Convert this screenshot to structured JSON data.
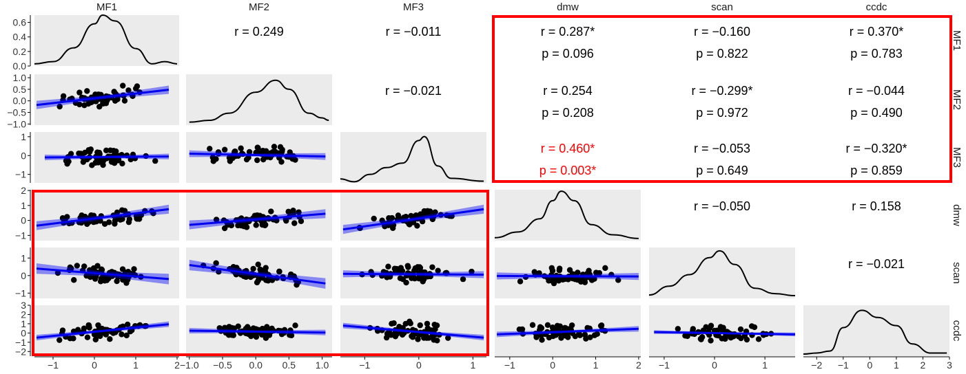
{
  "chart_data": {
    "type": "scatter",
    "subtype": "scatterplot-matrix",
    "variables": [
      "MF1",
      "MF2",
      "MF3",
      "dmw",
      "scan",
      "ccdc"
    ],
    "axis_ranges": {
      "MF1": [
        -1.45,
        2.05
      ],
      "MF2": [
        -1.05,
        1.15
      ],
      "MF3": [
        -1.45,
        1.25
      ],
      "dmw": [
        -1.35,
        2.05
      ],
      "scan": [
        -1.3,
        1.6
      ],
      "ccdc": [
        -2.5,
        3.0
      ]
    },
    "bottom_ticks": {
      "MF1": [
        "−1",
        "0",
        "1",
        "2"
      ],
      "MF2": [
        "−1.0",
        "−0.5",
        "0.0",
        "0.5",
        "1.0"
      ],
      "MF3": [
        "−1",
        "0",
        "1"
      ],
      "dmw": [
        "−1",
        "0",
        "1",
        "2"
      ],
      "scan": [
        "−1",
        "0",
        "1"
      ],
      "ccdc": [
        "−2",
        "−1",
        "0",
        "1",
        "2",
        "3"
      ]
    },
    "left_ticks": {
      "MF1": [
        "0.6",
        "0.4",
        "0.2",
        "0.0"
      ],
      "MF2": [
        "1.0",
        "0.5",
        "0.0",
        "−0.5",
        "−1.0"
      ],
      "MF3": [
        "1",
        "0",
        "−1"
      ],
      "dmw": [
        "2",
        "1",
        "0",
        "−1"
      ],
      "scan": [
        "1",
        "0",
        "−1"
      ],
      "ccdc": [
        "3",
        "2",
        "1",
        "0",
        "−1",
        "−2"
      ]
    },
    "correlations": [
      {
        "row": 0,
        "col": 1,
        "r": "r = 0.249",
        "p": ""
      },
      {
        "row": 0,
        "col": 2,
        "r": "r = −0.011",
        "p": ""
      },
      {
        "row": 0,
        "col": 3,
        "r": "r = 0.287*",
        "p": "p = 0.096"
      },
      {
        "row": 0,
        "col": 4,
        "r": "r = −0.160",
        "p": "p = 0.822"
      },
      {
        "row": 0,
        "col": 5,
        "r": "r = 0.370*",
        "p": "p = 0.783"
      },
      {
        "row": 1,
        "col": 2,
        "r": "r = −0.021",
        "p": ""
      },
      {
        "row": 1,
        "col": 3,
        "r": "r = 0.254",
        "p": "p = 0.208"
      },
      {
        "row": 1,
        "col": 4,
        "r": "r = −0.299*",
        "p": "p = 0.972"
      },
      {
        "row": 1,
        "col": 5,
        "r": "r = −0.044",
        "p": "p = 0.490"
      },
      {
        "row": 2,
        "col": 3,
        "r": "r = 0.460*",
        "p": "p = 0.003*",
        "highlight": true
      },
      {
        "row": 2,
        "col": 4,
        "r": "r = −0.053",
        "p": "p = 0.649"
      },
      {
        "row": 2,
        "col": 5,
        "r": "r = −0.320*",
        "p": "p = 0.859"
      },
      {
        "row": 3,
        "col": 4,
        "r": "r = −0.050",
        "p": ""
      },
      {
        "row": 3,
        "col": 5,
        "r": "r = 0.158",
        "p": ""
      },
      {
        "row": 4,
        "col": 5,
        "r": "r = −0.021",
        "p": ""
      }
    ],
    "densities": {
      "MF1": {
        "ylim": [
          0,
          0.7
        ],
        "points": [
          [
            -1.45,
            0.03
          ],
          [
            -1.0,
            0.06
          ],
          [
            -0.5,
            0.25
          ],
          [
            0.0,
            0.58
          ],
          [
            0.2,
            0.7
          ],
          [
            0.5,
            0.62
          ],
          [
            1.0,
            0.24
          ],
          [
            1.4,
            0.03
          ],
          [
            1.7,
            0.06
          ],
          [
            2.0,
            0.03
          ]
        ]
      },
      "MF2": {
        "ylim": [
          0,
          0.85
        ],
        "points": [
          [
            -1.0,
            0.05
          ],
          [
            -0.7,
            0.08
          ],
          [
            -0.4,
            0.2
          ],
          [
            0.0,
            0.55
          ],
          [
            0.3,
            0.75
          ],
          [
            0.5,
            0.6
          ],
          [
            0.8,
            0.2
          ],
          [
            1.0,
            0.12
          ],
          [
            1.1,
            0.08
          ]
        ]
      },
      "MF3": {
        "ylim": [
          0,
          0.9
        ],
        "points": [
          [
            -1.45,
            0.07
          ],
          [
            -1.2,
            0.02
          ],
          [
            -0.9,
            0.15
          ],
          [
            -0.6,
            0.27
          ],
          [
            -0.3,
            0.35
          ],
          [
            0.0,
            0.75
          ],
          [
            0.1,
            0.82
          ],
          [
            0.35,
            0.3
          ],
          [
            0.6,
            0.08
          ],
          [
            1.2,
            0.03
          ]
        ]
      },
      "dmw": {
        "ylim": [
          0,
          0.7
        ],
        "points": [
          [
            -1.35,
            0.04
          ],
          [
            -0.8,
            0.12
          ],
          [
            -0.3,
            0.3
          ],
          [
            0.0,
            0.55
          ],
          [
            0.2,
            0.68
          ],
          [
            0.5,
            0.55
          ],
          [
            0.9,
            0.22
          ],
          [
            1.4,
            0.08
          ],
          [
            2.0,
            0.03
          ]
        ]
      },
      "scan": {
        "ylim": [
          0,
          0.75
        ],
        "points": [
          [
            -1.3,
            0.05
          ],
          [
            -0.9,
            0.18
          ],
          [
            -0.5,
            0.35
          ],
          [
            -0.1,
            0.6
          ],
          [
            0.1,
            0.7
          ],
          [
            0.4,
            0.5
          ],
          [
            0.8,
            0.15
          ],
          [
            1.2,
            0.07
          ],
          [
            1.6,
            0.04
          ]
        ]
      },
      "ccdc": {
        "ylim": [
          0,
          0.5
        ],
        "points": [
          [
            -2.5,
            0.02
          ],
          [
            -2.0,
            0.03
          ],
          [
            -1.5,
            0.05
          ],
          [
            -1.0,
            0.28
          ],
          [
            -0.3,
            0.45
          ],
          [
            0.3,
            0.38
          ],
          [
            1.0,
            0.3
          ],
          [
            1.6,
            0.12
          ],
          [
            2.3,
            0.03
          ],
          [
            2.9,
            0.03
          ]
        ]
      }
    },
    "fits": [
      {
        "row": 1,
        "col": 0,
        "x": [
          -1.4,
          1.8
        ],
        "y": [
          -0.18,
          0.48
        ],
        "se": 0.18
      },
      {
        "row": 2,
        "col": 0,
        "x": [
          -1.2,
          1.8
        ],
        "y": [
          -0.1,
          -0.05
        ],
        "se": 0.15
      },
      {
        "row": 2,
        "col": 1,
        "x": [
          -1.0,
          1.05
        ],
        "y": [
          0.1,
          -0.05
        ],
        "se": 0.18
      },
      {
        "row": 3,
        "col": 0,
        "x": [
          -1.4,
          1.8
        ],
        "y": [
          -0.35,
          0.75
        ],
        "se": 0.3
      },
      {
        "row": 3,
        "col": 1,
        "x": [
          -1.0,
          1.05
        ],
        "y": [
          -0.3,
          0.45
        ],
        "se": 0.3
      },
      {
        "row": 3,
        "col": 2,
        "x": [
          -1.4,
          1.2
        ],
        "y": [
          -0.6,
          0.75
        ],
        "se": 0.3
      },
      {
        "row": 4,
        "col": 0,
        "x": [
          -1.4,
          1.8
        ],
        "y": [
          0.4,
          -0.2
        ],
        "se": 0.3
      },
      {
        "row": 4,
        "col": 1,
        "x": [
          -1.0,
          1.05
        ],
        "y": [
          0.6,
          -0.45
        ],
        "se": 0.3
      },
      {
        "row": 4,
        "col": 2,
        "x": [
          -1.4,
          1.2
        ],
        "y": [
          0.1,
          0.05
        ],
        "se": 0.2
      },
      {
        "row": 4,
        "col": 3,
        "x": [
          -1.3,
          2.0
        ],
        "y": [
          -0.02,
          -0.05
        ],
        "se": 0.2
      },
      {
        "row": 5,
        "col": 0,
        "x": [
          -1.4,
          1.8
        ],
        "y": [
          -0.5,
          0.95
        ],
        "se": 0.3
      },
      {
        "row": 5,
        "col": 1,
        "x": [
          -1.0,
          1.05
        ],
        "y": [
          0.25,
          0.05
        ],
        "se": 0.3
      },
      {
        "row": 5,
        "col": 2,
        "x": [
          -1.4,
          1.2
        ],
        "y": [
          0.8,
          -0.5
        ],
        "se": 0.3
      },
      {
        "row": 5,
        "col": 3,
        "x": [
          -1.3,
          2.0
        ],
        "y": [
          -0.15,
          0.45
        ],
        "se": 0.3
      },
      {
        "row": 5,
        "col": 4,
        "x": [
          -1.2,
          1.6
        ],
        "y": [
          0.1,
          -0.15
        ],
        "se": 0.2
      }
    ],
    "scatter_points_per_panel": 60,
    "highlight_boxes": [
      {
        "rows": [
          0,
          2
        ],
        "cols": [
          3,
          5
        ]
      },
      {
        "rows": [
          3,
          5
        ],
        "cols": [
          0,
          2
        ]
      }
    ]
  }
}
